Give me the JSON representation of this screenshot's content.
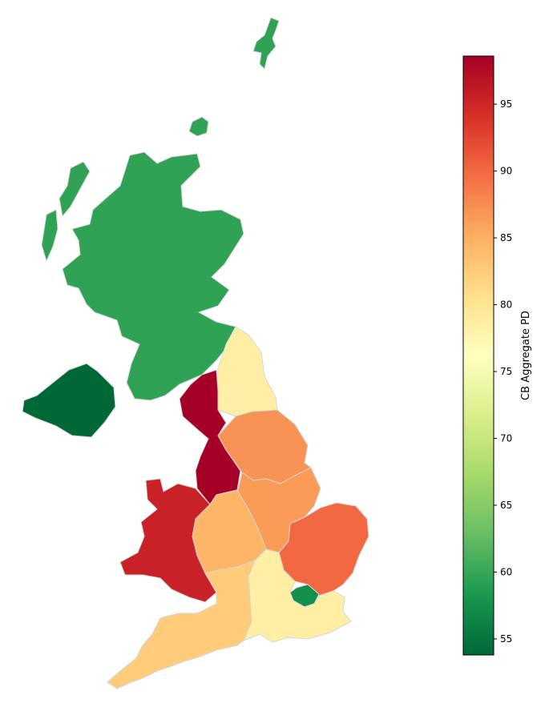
{
  "colorbar": {
    "label": "CB Aggregate PD",
    "min": 53.8,
    "max": 98.6,
    "ticks": [
      "55",
      "60",
      "65",
      "70",
      "75",
      "80",
      "85",
      "90",
      "95"
    ],
    "tick_values": [
      55,
      60,
      65,
      70,
      75,
      80,
      85,
      90,
      95
    ],
    "colormap": "RdYlGn_r",
    "stops": [
      "#006837",
      "#1a9850",
      "#66bd63",
      "#a6d96a",
      "#d9ef8b",
      "#ffffbf",
      "#fee08b",
      "#fdae61",
      "#f46d43",
      "#d73027",
      "#a50026"
    ]
  },
  "map_data": {
    "metric": "CB Aggregate PD",
    "regions": [
      {
        "id": "scotland",
        "value": 59.5
      },
      {
        "id": "northern-ireland",
        "value": 53.8
      },
      {
        "id": "north-east",
        "value": 78.5
      },
      {
        "id": "north-west",
        "value": 98.6
      },
      {
        "id": "yorkshire-humber",
        "value": 87.0
      },
      {
        "id": "east-midlands",
        "value": 86.5
      },
      {
        "id": "west-midlands",
        "value": 84.5
      },
      {
        "id": "wales",
        "value": 95.5
      },
      {
        "id": "east-of-england",
        "value": 90.0
      },
      {
        "id": "london",
        "value": 57.5
      },
      {
        "id": "south-east",
        "value": 78.5
      },
      {
        "id": "south-west",
        "value": 82.5
      }
    ]
  }
}
